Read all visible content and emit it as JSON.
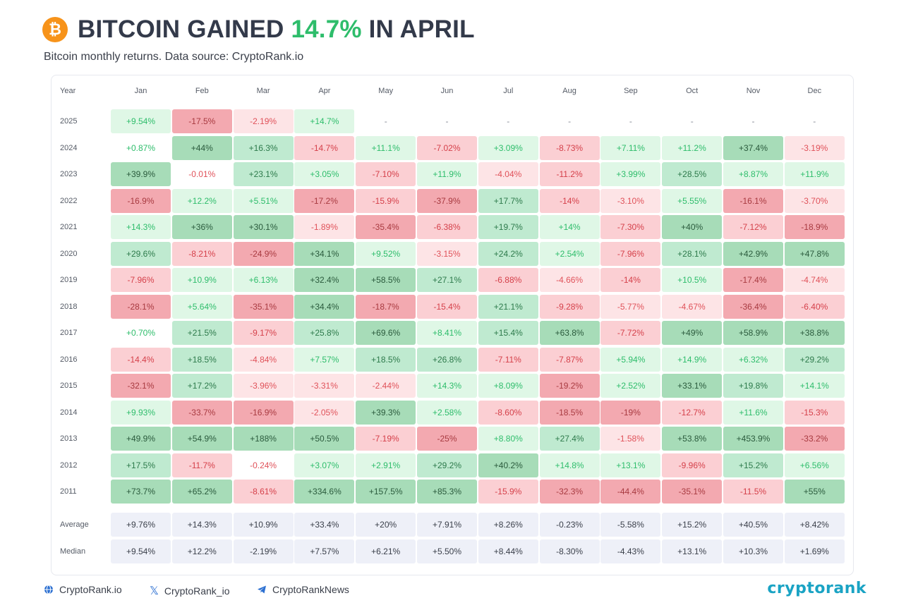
{
  "header": {
    "logo_glyph": "₿",
    "title_prefix": "BITCOIN GAINED ",
    "title_highlight": "14.7%",
    "title_suffix": " IN APRIL",
    "subtitle": "Bitcoin monthly returns. Data source: CryptoRank.io"
  },
  "footer": {
    "website": "CryptoRank.io",
    "x_handle": "CryptoRank_io",
    "telegram": "CryptoRankNews",
    "brand": "cryptorank"
  },
  "colors": {
    "positive_text": "#2ebd6b",
    "negative_text": "#e0525a",
    "accent": "#2ebd6b",
    "brand": "#1aa3c4"
  },
  "chart_data": {
    "type": "heatmap",
    "title": "BITCOIN GAINED 14.7% IN APRIL",
    "subtitle": "Bitcoin monthly returns. Data source: CryptoRank.io",
    "year_header": "Year",
    "columns": [
      "Jan",
      "Feb",
      "Mar",
      "Apr",
      "May",
      "Jun",
      "Jul",
      "Aug",
      "Sep",
      "Oct",
      "Nov",
      "Dec"
    ],
    "rows": [
      {
        "year": "2025",
        "values": [
          "+9.54%",
          "-17.5%",
          "-2.19%",
          "+14.7%",
          "-",
          "-",
          "-",
          "-",
          "-",
          "-",
          "-",
          "-"
        ]
      },
      {
        "year": "2024",
        "values": [
          "+0.87%",
          "+44%",
          "+16.3%",
          "-14.7%",
          "+11.1%",
          "-7.02%",
          "+3.09%",
          "-8.73%",
          "+7.11%",
          "+11.2%",
          "+37.4%",
          "-3.19%"
        ]
      },
      {
        "year": "2023",
        "values": [
          "+39.9%",
          "-0.01%",
          "+23.1%",
          "+3.05%",
          "-7.10%",
          "+11.9%",
          "-4.04%",
          "-11.2%",
          "+3.99%",
          "+28.5%",
          "+8.87%",
          "+11.9%"
        ]
      },
      {
        "year": "2022",
        "values": [
          "-16.9%",
          "+12.2%",
          "+5.51%",
          "-17.2%",
          "-15.9%",
          "-37.9%",
          "+17.7%",
          "-14%",
          "-3.10%",
          "+5.55%",
          "-16.1%",
          "-3.70%"
        ]
      },
      {
        "year": "2021",
        "values": [
          "+14.3%",
          "+36%",
          "+30.1%",
          "-1.89%",
          "-35.4%",
          "-6.38%",
          "+19.7%",
          "+14%",
          "-7.30%",
          "+40%",
          "-7.12%",
          "-18.9%"
        ]
      },
      {
        "year": "2020",
        "values": [
          "+29.6%",
          "-8.21%",
          "-24.9%",
          "+34.1%",
          "+9.52%",
          "-3.15%",
          "+24.2%",
          "+2.54%",
          "-7.96%",
          "+28.1%",
          "+42.9%",
          "+47.8%"
        ]
      },
      {
        "year": "2019",
        "values": [
          "-7.96%",
          "+10.9%",
          "+6.13%",
          "+32.4%",
          "+58.5%",
          "+27.1%",
          "-6.88%",
          "-4.66%",
          "-14%",
          "+10.5%",
          "-17.4%",
          "-4.74%"
        ]
      },
      {
        "year": "2018",
        "values": [
          "-28.1%",
          "+5.64%",
          "-35.1%",
          "+34.4%",
          "-18.7%",
          "-15.4%",
          "+21.1%",
          "-9.28%",
          "-5.77%",
          "-4.67%",
          "-36.4%",
          "-6.40%"
        ]
      },
      {
        "year": "2017",
        "values": [
          "+0.70%",
          "+21.5%",
          "-9.17%",
          "+25.8%",
          "+69.6%",
          "+8.41%",
          "+15.4%",
          "+63.8%",
          "-7.72%",
          "+49%",
          "+58.9%",
          "+38.8%"
        ]
      },
      {
        "year": "2016",
        "values": [
          "-14.4%",
          "+18.5%",
          "-4.84%",
          "+7.57%",
          "+18.5%",
          "+26.8%",
          "-7.11%",
          "-7.87%",
          "+5.94%",
          "+14.9%",
          "+6.32%",
          "+29.2%"
        ]
      },
      {
        "year": "2015",
        "values": [
          "-32.1%",
          "+17.2%",
          "-3.96%",
          "-3.31%",
          "-2.44%",
          "+14.3%",
          "+8.09%",
          "-19.2%",
          "+2.52%",
          "+33.1%",
          "+19.8%",
          "+14.1%"
        ]
      },
      {
        "year": "2014",
        "values": [
          "+9.93%",
          "-33.7%",
          "-16.9%",
          "-2.05%",
          "+39.3%",
          "+2.58%",
          "-8.60%",
          "-18.5%",
          "-19%",
          "-12.7%",
          "+11.6%",
          "-15.3%"
        ]
      },
      {
        "year": "2013",
        "values": [
          "+49.9%",
          "+54.9%",
          "+188%",
          "+50.5%",
          "-7.19%",
          "-25%",
          "+8.80%",
          "+27.4%",
          "-1.58%",
          "+53.8%",
          "+453.9%",
          "-33.2%"
        ]
      },
      {
        "year": "2012",
        "values": [
          "+17.5%",
          "-11.7%",
          "-0.24%",
          "+3.07%",
          "+2.91%",
          "+29.2%",
          "+40.2%",
          "+14.8%",
          "+13.1%",
          "-9.96%",
          "+15.2%",
          "+6.56%"
        ]
      },
      {
        "year": "2011",
        "values": [
          "+73.7%",
          "+65.2%",
          "-8.61%",
          "+334.6%",
          "+157.5%",
          "+85.3%",
          "-15.9%",
          "-32.3%",
          "-44.4%",
          "-35.1%",
          "-11.5%",
          "+55%"
        ]
      }
    ],
    "summary": [
      {
        "label": "Average",
        "values": [
          "+9.76%",
          "+14.3%",
          "+10.9%",
          "+33.4%",
          "+20%",
          "+7.91%",
          "+8.26%",
          "-0.23%",
          "-5.58%",
          "+15.2%",
          "+40.5%",
          "+8.42%"
        ]
      },
      {
        "label": "Median",
        "values": [
          "+9.54%",
          "+12.2%",
          "-2.19%",
          "+7.57%",
          "+6.21%",
          "+5.50%",
          "+8.44%",
          "-8.30%",
          "-4.43%",
          "+13.1%",
          "+10.3%",
          "+1.69%"
        ]
      }
    ]
  }
}
